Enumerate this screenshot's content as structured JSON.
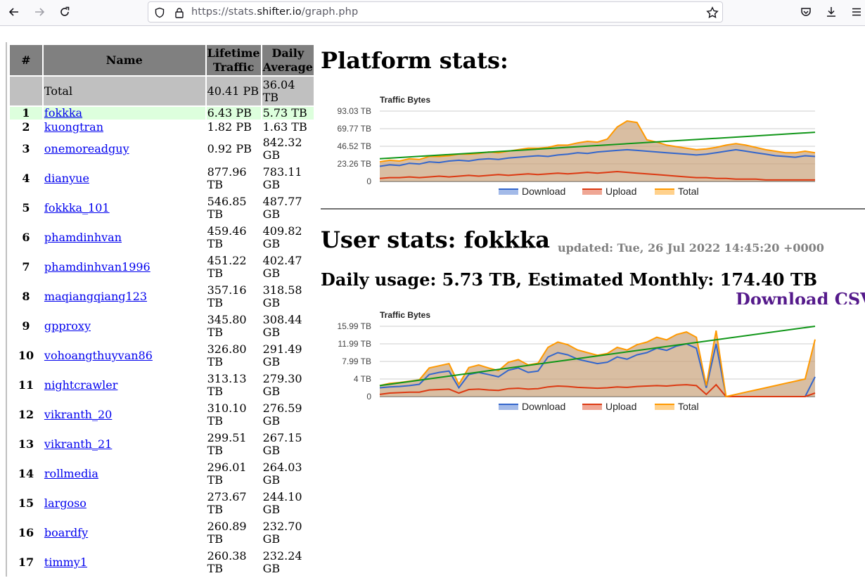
{
  "browser": {
    "url_scheme": "https://stats.",
    "url_host": "shifter.io",
    "url_path": "/graph.php",
    "icons": [
      "back-arrow-icon",
      "forward-arrow-icon",
      "reload-icon",
      "shield-icon",
      "lock-icon",
      "star-icon",
      "pocket-icon",
      "download-icon",
      "menu-icon"
    ]
  },
  "table": {
    "headers": [
      "#",
      "Name",
      "Lifetime Traffic",
      "Daily Average"
    ],
    "total": {
      "label": "Total",
      "lifetime": "40.41 PB",
      "daily": "36.04 TB"
    },
    "rows": [
      {
        "rank": "1",
        "name": "fokkka",
        "lifetime": "6.43 PB",
        "daily": "5.73 TB"
      },
      {
        "rank": "2",
        "name": "kuongtran",
        "lifetime": "1.82 PB",
        "daily": "1.63 TB"
      },
      {
        "rank": "3",
        "name": "onemoreadguy",
        "lifetime": "0.92 PB",
        "daily": "842.32 GB"
      },
      {
        "rank": "4",
        "name": "dianyue",
        "lifetime": "877.96 TB",
        "daily": "783.11 GB"
      },
      {
        "rank": "5",
        "name": "fokkka_101",
        "lifetime": "546.85 TB",
        "daily": "487.77 GB"
      },
      {
        "rank": "6",
        "name": "phamdinhvan",
        "lifetime": "459.46 TB",
        "daily": "409.82 GB"
      },
      {
        "rank": "7",
        "name": "phamdinhvan1996",
        "lifetime": "451.22 TB",
        "daily": "402.47 GB"
      },
      {
        "rank": "8",
        "name": "maqiangqiang123",
        "lifetime": "357.16 TB",
        "daily": "318.58 GB"
      },
      {
        "rank": "9",
        "name": "gpproxy",
        "lifetime": "345.80 TB",
        "daily": "308.44 GB"
      },
      {
        "rank": "10",
        "name": "vohoangthuyvan86",
        "lifetime": "326.80 TB",
        "daily": "291.49 GB"
      },
      {
        "rank": "11",
        "name": "nightcrawler",
        "lifetime": "313.13 TB",
        "daily": "279.30 GB"
      },
      {
        "rank": "12",
        "name": "vikranth_20",
        "lifetime": "310.10 TB",
        "daily": "276.59 GB"
      },
      {
        "rank": "13",
        "name": "vikranth_21",
        "lifetime": "299.51 TB",
        "daily": "267.15 GB"
      },
      {
        "rank": "14",
        "name": "rollmedia",
        "lifetime": "296.01 TB",
        "daily": "264.03 GB"
      },
      {
        "rank": "15",
        "name": "largoso",
        "lifetime": "273.67 TB",
        "daily": "244.10 GB"
      },
      {
        "rank": "16",
        "name": "boardfy",
        "lifetime": "260.89 TB",
        "daily": "232.70 GB"
      },
      {
        "rank": "17",
        "name": "timmy1",
        "lifetime": "260.38 TB",
        "daily": "232.24 GB"
      }
    ]
  },
  "platform": {
    "title": "Platform stats:"
  },
  "user": {
    "title": "User stats: fokkka",
    "updated": "updated: Tue, 26 Jul 2022 14:45:20 +0000",
    "daily_line": "Daily usage: 5.73 TB, Estimated Monthly: 174.40 TB",
    "csv_label": "Download CSV"
  },
  "chart_data": [
    {
      "type": "area",
      "title": "Traffic Bytes",
      "y_ticks": [
        "0",
        "23.26 TB",
        "46.52 TB",
        "69.77 TB",
        "93.03 TB"
      ],
      "ylim": [
        0,
        93.03
      ],
      "legend": "bottom",
      "series": [
        {
          "name": "Download",
          "color": "#3366cc",
          "values": [
            20,
            22,
            21,
            24,
            23,
            26,
            25,
            27,
            28,
            27,
            29,
            30,
            29,
            31,
            32,
            33,
            34,
            33,
            35,
            36,
            38,
            37,
            39,
            40,
            41,
            42,
            41,
            40,
            39,
            38,
            37,
            36,
            35,
            36,
            38,
            40,
            42,
            40,
            38,
            36,
            34,
            33,
            32,
            34,
            33
          ]
        },
        {
          "name": "Upload",
          "color": "#dc3912",
          "values": [
            4,
            5,
            5,
            6,
            5,
            6,
            7,
            6,
            7,
            8,
            7,
            8,
            9,
            8,
            9,
            10,
            9,
            10,
            11,
            10,
            11,
            12,
            11,
            12,
            13,
            12,
            11,
            10,
            9,
            8,
            7,
            6,
            5,
            5,
            4,
            4,
            3,
            3,
            3,
            2,
            2,
            2,
            2,
            2,
            2
          ]
        },
        {
          "name": "Total",
          "color": "#ff9900",
          "values": [
            26,
            28,
            27,
            30,
            29,
            33,
            33,
            34,
            36,
            36,
            37,
            39,
            38,
            40,
            42,
            44,
            44,
            45,
            48,
            48,
            51,
            53,
            52,
            56,
            72,
            80,
            78,
            55,
            52,
            48,
            46,
            44,
            42,
            43,
            45,
            48,
            50,
            48,
            45,
            42,
            40,
            38,
            38,
            40,
            38
          ]
        }
      ],
      "trend": {
        "color": "#109618",
        "values": [
          30,
          65
        ]
      }
    },
    {
      "type": "area",
      "title": "Traffic Bytes",
      "y_ticks": [
        "0",
        "4 TB",
        "7.99 TB",
        "11.99 TB",
        "15.99 TB"
      ],
      "ylim": [
        0,
        15.99
      ],
      "legend": "bottom",
      "series": [
        {
          "name": "Download",
          "color": "#3366cc",
          "values": [
            2,
            2.2,
            2.3,
            2.5,
            2.8,
            5,
            5.5,
            5.8,
            2,
            5,
            5.5,
            5,
            4.5,
            6,
            6.5,
            5.5,
            5.8,
            9,
            10,
            9.5,
            8.5,
            8,
            7.5,
            7.8,
            9,
            8.5,
            9.5,
            10,
            11,
            10.5,
            11.5,
            12,
            11,
            2,
            12,
            0,
            0,
            0,
            0,
            0,
            0,
            0,
            0,
            0,
            4.5
          ]
        },
        {
          "name": "Upload",
          "color": "#dc3912",
          "values": [
            0.5,
            0.8,
            0.9,
            1,
            1,
            1.5,
            1.6,
            1.7,
            0.8,
            1.6,
            1.7,
            1.5,
            1.4,
            1.8,
            1.9,
            1.7,
            1.8,
            2.2,
            2.4,
            2.3,
            2.1,
            2,
            1.9,
            2,
            2.2,
            2.1,
            2.3,
            2.4,
            2.5,
            2.4,
            2.6,
            2.7,
            2.5,
            0.5,
            2.7,
            0,
            0,
            0,
            0,
            0,
            0,
            0,
            0,
            0,
            0.8
          ]
        },
        {
          "name": "Total",
          "color": "#ff9900",
          "values": [
            2.5,
            3,
            3.2,
            3.5,
            3.8,
            6.5,
            7,
            7.5,
            2.8,
            6.6,
            7.2,
            6.5,
            5.9,
            7.8,
            8.4,
            7.2,
            7.6,
            11.2,
            12.4,
            11.8,
            10.6,
            10,
            9.4,
            9.8,
            11.2,
            10.6,
            11.8,
            12.4,
            13.5,
            12.9,
            14.1,
            14.7,
            13.5,
            2.5,
            15,
            0,
            0.5,
            1,
            1.5,
            2,
            2.5,
            3,
            3.5,
            4,
            13
          ]
        }
      ],
      "trend": {
        "color": "#109618",
        "values": [
          2.5,
          16.5
        ]
      }
    }
  ]
}
